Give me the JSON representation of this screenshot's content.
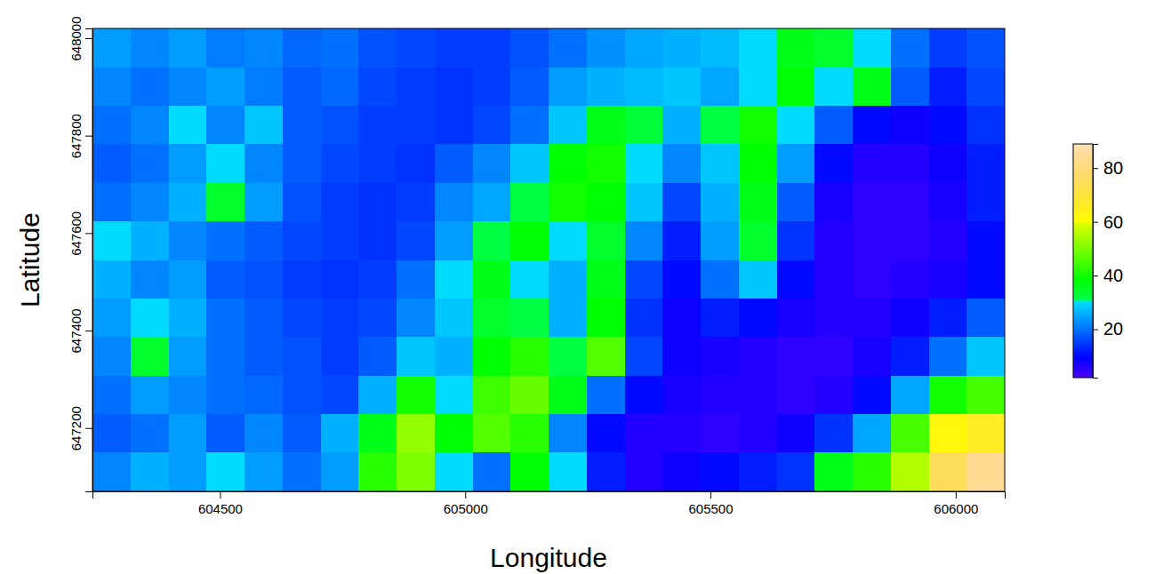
{
  "chart_data": {
    "type": "heatmap",
    "x_label": "Longitude",
    "y_label": "Latitude",
    "xlim": [
      604240,
      606100
    ],
    "ylim": [
      647070,
      648020
    ],
    "xticks": [
      604500,
      605000,
      605500,
      606000
    ],
    "yticks": [
      647200,
      647400,
      647600,
      647800,
      648000
    ],
    "x": [
      604279,
      604356,
      604434,
      604511,
      604589,
      604666,
      604744,
      604821,
      604899,
      604976,
      605054,
      605131,
      605209,
      605286,
      605364,
      605441,
      605519,
      605596,
      605674,
      605751,
      605829,
      605906,
      605984,
      606061
    ],
    "y": [
      647980,
      647901,
      647822,
      647743,
      647664,
      647585,
      647505,
      647426,
      647347,
      647268,
      647189,
      647110
    ],
    "values": [
      [
        24,
        22,
        24,
        21,
        22,
        19,
        20,
        17,
        16,
        15,
        15,
        17,
        20,
        23,
        25,
        26,
        27,
        30,
        36,
        34,
        30,
        20,
        15,
        17
      ],
      [
        22,
        20,
        22,
        24,
        21,
        18,
        19,
        16,
        15,
        14,
        15,
        18,
        24,
        26,
        27,
        28,
        25,
        30,
        38,
        30,
        36,
        18,
        12,
        16
      ],
      [
        20,
        22,
        30,
        22,
        28,
        18,
        17,
        15,
        15,
        14,
        16,
        20,
        28,
        36,
        33,
        26,
        32,
        40,
        30,
        18,
        10,
        8,
        10,
        14
      ],
      [
        18,
        20,
        24,
        30,
        22,
        18,
        16,
        15,
        14,
        18,
        22,
        28,
        38,
        40,
        30,
        22,
        28,
        38,
        24,
        10,
        6,
        6,
        8,
        12
      ],
      [
        20,
        22,
        26,
        34,
        24,
        17,
        15,
        14,
        15,
        22,
        25,
        32,
        40,
        38,
        28,
        16,
        26,
        36,
        18,
        7,
        5,
        5,
        7,
        12
      ],
      [
        30,
        26,
        22,
        20,
        18,
        16,
        15,
        14,
        16,
        24,
        32,
        38,
        30,
        34,
        22,
        12,
        24,
        34,
        14,
        6,
        5,
        5,
        6,
        10
      ],
      [
        26,
        22,
        24,
        18,
        17,
        15,
        14,
        15,
        20,
        30,
        36,
        30,
        26,
        36,
        16,
        10,
        20,
        28,
        10,
        6,
        5,
        6,
        7,
        10
      ],
      [
        24,
        30,
        26,
        20,
        18,
        16,
        15,
        16,
        22,
        28,
        34,
        32,
        26,
        38,
        14,
        8,
        12,
        10,
        7,
        6,
        6,
        8,
        12,
        18
      ],
      [
        22,
        34,
        24,
        20,
        18,
        17,
        15,
        18,
        28,
        26,
        38,
        42,
        32,
        46,
        16,
        8,
        7,
        6,
        5,
        5,
        7,
        12,
        20,
        28
      ],
      [
        20,
        24,
        22,
        20,
        19,
        17,
        16,
        26,
        40,
        30,
        44,
        48,
        36,
        20,
        10,
        7,
        6,
        6,
        5,
        6,
        10,
        25,
        40,
        45
      ],
      [
        18,
        20,
        24,
        18,
        22,
        18,
        26,
        36,
        52,
        38,
        46,
        42,
        22,
        10,
        6,
        6,
        5,
        6,
        8,
        14,
        25,
        45,
        62,
        66
      ],
      [
        22,
        26,
        24,
        30,
        24,
        20,
        24,
        42,
        50,
        30,
        20,
        38,
        30,
        12,
        6,
        8,
        10,
        12,
        14,
        36,
        42,
        55,
        75,
        84
      ]
    ],
    "colorbar_range": [
      2,
      89
    ],
    "colorbar_ticks": [
      20,
      40,
      60,
      80
    ]
  }
}
